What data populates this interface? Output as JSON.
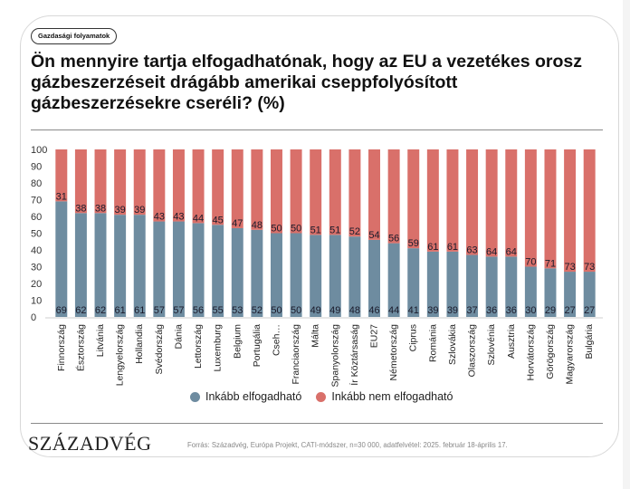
{
  "tag": "Gazdasági folyamatok",
  "title": "Ön mennyire tartja elfogadhatónak, hogy az EU a vezetékes orosz gázbeszerzéseit drágább amerikai cseppfolyósított gázbeszerzésekre cseréli? (%)",
  "logo": "SZÁZADVÉG",
  "source": "Forrás: Századvég, Európa Projekt, CATI-módszer, n=30 000, adatfelvétel: 2025. február 18-április 17.",
  "colors": {
    "accept": "#6E8CA0",
    "reject": "#D9706A"
  },
  "chart_data": {
    "type": "bar",
    "stacked": true,
    "title": "Ön mennyire tartja elfogadhatónak, hogy az EU a vezetékes orosz gázbeszerzéseit drágább amerikai cseppfolyósított gázbeszerzésekre cseréli? (%)",
    "xlabel": "",
    "ylabel": "",
    "ylim": [
      0,
      100
    ],
    "yticks": [
      0,
      10,
      20,
      30,
      40,
      50,
      60,
      70,
      80,
      90,
      100
    ],
    "grid": false,
    "legend_position": "bottom",
    "categories": [
      "Finnország",
      "Észtország",
      "Litvánia",
      "Lengyelország",
      "Hollandia",
      "Svédország",
      "Dánia",
      "Lettország",
      "Luxemburg",
      "Belgium",
      "Portugália",
      "Cseh…",
      "Franciaország",
      "Málta",
      "Spanyolország",
      "Ír Köztársaság",
      "EU27",
      "Németország",
      "Ciprus",
      "Románia",
      "Szlovákia",
      "Olaszország",
      "Szlovénia",
      "Ausztria",
      "Horvátország",
      "Görögország",
      "Magyarország",
      "Bulgária"
    ],
    "series": [
      {
        "name": "Inkább elfogadható",
        "color": "#6E8CA0",
        "values": [
          69,
          62,
          62,
          61,
          61,
          57,
          57,
          56,
          55,
          53,
          52,
          50,
          50,
          49,
          49,
          48,
          46,
          44,
          41,
          39,
          39,
          37,
          36,
          36,
          30,
          29,
          27,
          27
        ]
      },
      {
        "name": "Inkább nem elfogadható",
        "color": "#D9706A",
        "values": [
          31,
          38,
          38,
          39,
          39,
          43,
          43,
          44,
          45,
          47,
          48,
          50,
          50,
          51,
          51,
          52,
          54,
          56,
          59,
          61,
          61,
          63,
          64,
          64,
          70,
          71,
          73,
          73
        ]
      }
    ]
  }
}
